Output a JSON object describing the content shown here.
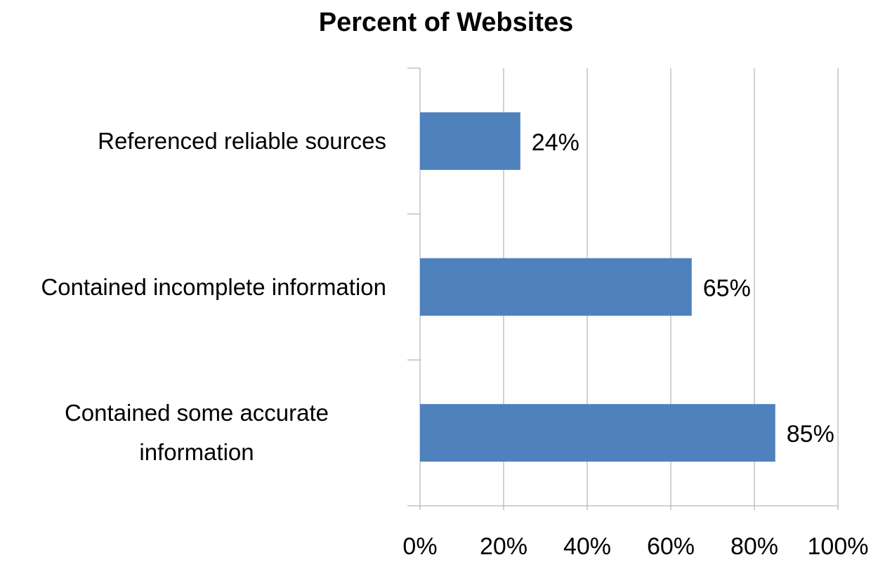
{
  "chart_data": {
    "type": "barh",
    "title": "Percent of Websites",
    "categories": [
      "Referenced reliable sources",
      "Contained incomplete information",
      "Contained some accurate information"
    ],
    "values": [
      24,
      65,
      85
    ],
    "value_labels": [
      "24%",
      "65%",
      "85%"
    ],
    "color": "#4f81bd",
    "xlim": [
      0,
      100
    ],
    "xticks": [
      {
        "value": 0,
        "label": "0%"
      },
      {
        "value": 20,
        "label": "20%"
      },
      {
        "value": 40,
        "label": "40%"
      },
      {
        "value": 60,
        "label": "60%"
      },
      {
        "value": 80,
        "label": "80%"
      },
      {
        "value": 100,
        "label": "100%"
      }
    ],
    "grid": true
  }
}
